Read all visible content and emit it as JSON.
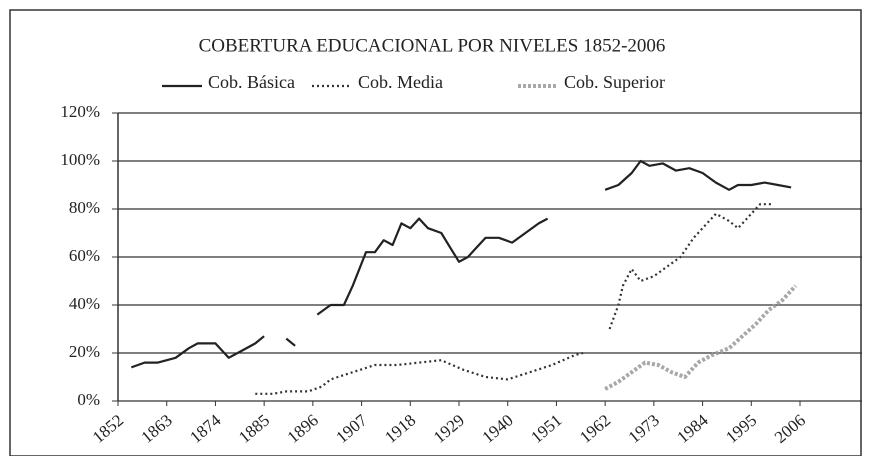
{
  "chart_data": {
    "type": "line",
    "title": "COBERTURA EDUCACIONAL POR NIVELES 1852-2006",
    "xlim": [
      1852,
      2006
    ],
    "xticks": [
      1852,
      1863,
      1874,
      1885,
      1896,
      1907,
      1918,
      1929,
      1940,
      1951,
      1962,
      1973,
      1984,
      1995,
      2006
    ],
    "ylim": [
      0,
      120
    ],
    "yticks": [
      {
        "value": 0,
        "label": "0%"
      },
      {
        "value": 20,
        "label": "20%"
      },
      {
        "value": 40,
        "label": "40%"
      },
      {
        "value": 60,
        "label": "60%"
      },
      {
        "value": 80,
        "label": "80%"
      },
      {
        "value": 100,
        "label": "100%"
      },
      {
        "value": 120,
        "label": "120%"
      }
    ],
    "grid": true,
    "legend": "top",
    "series": [
      {
        "name": "Cob. Básica",
        "color": "#222222",
        "line_style": "solid",
        "x": [
          1855,
          1858,
          1861,
          1865,
          1868,
          1870,
          1874,
          1877,
          1880,
          1883,
          1885,
          1887,
          1890,
          1892,
          1894,
          1897,
          1900,
          1903,
          1905,
          1908,
          1910,
          1912,
          1914,
          1916,
          1918,
          1920,
          1922,
          1925,
          1927,
          1929,
          1931,
          1933,
          1935,
          1938,
          1941,
          1944,
          1947,
          1949,
          1955,
          1962,
          1965,
          1968,
          1970,
          1972,
          1975,
          1978,
          1981,
          1984,
          1987,
          1990,
          1992,
          1995,
          1998,
          2001,
          2004
        ],
        "values": [
          14,
          16,
          16,
          18,
          22,
          24,
          24,
          18,
          21,
          24,
          27,
          null,
          26,
          23,
          null,
          36,
          40,
          40,
          48,
          62,
          62,
          67,
          65,
          74,
          72,
          76,
          72,
          70,
          64,
          58,
          60,
          64,
          68,
          68,
          66,
          70,
          74,
          76,
          null,
          88,
          90,
          95,
          100,
          98,
          99,
          96,
          97,
          95,
          91,
          88,
          90,
          90,
          91,
          90,
          89
        ]
      },
      {
        "name": "Cob. Media",
        "color": "#333333",
        "line_style": "dotted",
        "x": [
          1883,
          1887,
          1890,
          1895,
          1898,
          1900,
          1905,
          1910,
          1915,
          1920,
          1925,
          1930,
          1935,
          1940,
          1945,
          1950,
          1955,
          1957,
          1960,
          1963,
          1965,
          1966,
          1968,
          1970,
          1973,
          1976,
          1979,
          1982,
          1985,
          1987,
          1990,
          1992,
          1995,
          1997,
          2000
        ],
        "values": [
          3,
          3,
          4,
          4,
          6,
          9,
          12,
          15,
          15,
          16,
          17,
          13,
          10,
          9,
          12,
          15,
          19,
          20,
          null,
          30,
          40,
          48,
          55,
          50,
          52,
          56,
          60,
          68,
          74,
          78,
          75,
          72,
          78,
          82,
          82
        ]
      },
      {
        "name": "Cob. Superior",
        "color": "#999999",
        "line_style": "hatched",
        "x": [
          1962,
          1965,
          1968,
          1971,
          1974,
          1977,
          1980,
          1983,
          1986,
          1990,
          1993,
          1996,
          1999,
          2002,
          2005
        ],
        "values": [
          5,
          8,
          12,
          16,
          15,
          12,
          10,
          16,
          19,
          22,
          27,
          32,
          38,
          42,
          48
        ]
      }
    ]
  }
}
